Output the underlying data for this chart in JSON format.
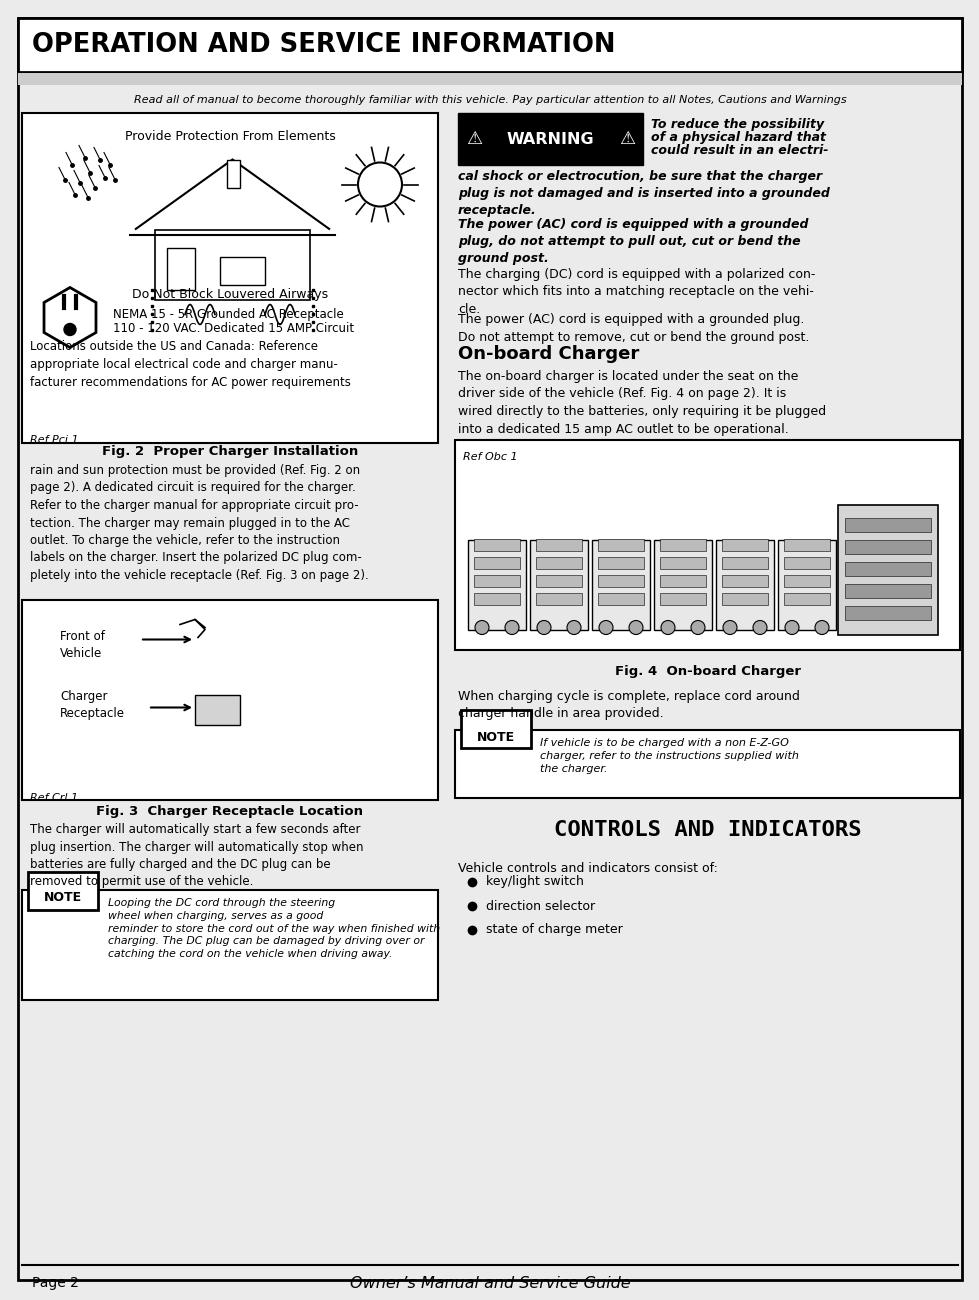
{
  "title": "OPERATION AND SERVICE INFORMATION",
  "subtitle": "Read all of manual to become thoroughly familiar with this vehicle. Pay particular attention to all Notes, Cautions and Warnings",
  "left_box_text1": "Provide Protection From Elements",
  "left_box_text2": "Do Not Block Louvered Airways",
  "left_box_text3a": "NEMA 15 - 5R Grounded AC Receptacle",
  "left_box_text3b": "110 - 120 VAC. Dedicated 15 AMP Circuit",
  "left_box_text4": "Locations outside the US and Canada: Reference\nappropriate local electrical code and charger manu-\nfacturer recommendations for AC power requirements",
  "ref_pci": "Ref Pci 1",
  "ref_crl": "Ref Crl 1",
  "ref_obc": "Ref Obc 1",
  "fig2_caption": "Fig. 2  Proper Charger Installation",
  "fig3_caption": "Fig. 3  Charger Receptacle Location",
  "fig4_caption": "Fig. 4  On-board Charger",
  "body_text_charger": "rain and sun protection must be provided (Ref. Fig. 2 on\npage 2). A dedicated circuit is required for the charger.\nRefer to the charger manual for appropriate circuit pro-\ntection. The charger may remain plugged in to the AC\noutlet. To charge the vehicle, refer to the instruction\nlabels on the charger. Insert the polarized DC plug com-\npletely into the vehicle receptacle (Ref. Fig. 3 on page 2).",
  "body_text_auto": "The charger will automatically start a few seconds after\nplug insertion. The charger will automatically stop when\nbatteries are fully charged and the DC plug can be\nremoved to permit use of the vehicle.",
  "note_text": "Looping the DC cord through the steering\nwheel when charging, serves as a good\nreminder to store the cord out of the way when finished with\ncharging. The DC plug can be damaged by driving over or\ncatching the cord on the vehicle when driving away.",
  "warning_line1": "To reduce the possibility",
  "warning_line2": "of a physical hazard that",
  "warning_line3": "could result in an electri-",
  "warning_para1": "cal shock or electrocution, be sure that the charger\nplug is not damaged and is inserted into a grounded\nreceptacle.",
  "warning_para2": "The power (AC) cord is equipped with a grounded\nplug, do not attempt to pull out, cut or bend the\nground post.",
  "text1": "The charging (DC) cord is equipped with a polarized con-\nnector which fits into a matching receptacle on the vehi-\ncle.",
  "text2": "The power (AC) cord is equipped with a grounded plug.\nDo not attempt to remove, cut or bend the ground post.",
  "onboard_title": "On-board Charger",
  "onboard_text": "The on-board charger is located under the seat on the\ndriver side of the vehicle (Ref. Fig. 4 on page 2). It is\nwired directly to the batteries, only requiring it be plugged\ninto a dedicated 15 amp AC outlet to be operational.",
  "cord_text": "When charging cycle is complete, replace cord around\ncharger handle in area provided.",
  "note_text2": "If vehicle is to be charged with a non E-Z-GO\ncharger, refer to the instructions supplied with\nthe charger.",
  "controls_title": "CONTROLS AND INDICATORS",
  "controls_text": "Vehicle controls and indicators consist of:",
  "controls_list": [
    "key/light switch",
    "direction selector",
    "state of charge meter"
  ],
  "footer_left": "Page 2",
  "footer_center": "Owner’s Manual and Service Guide",
  "bg_color": "#ebebeb",
  "white": "#ffffff",
  "black": "#000000"
}
